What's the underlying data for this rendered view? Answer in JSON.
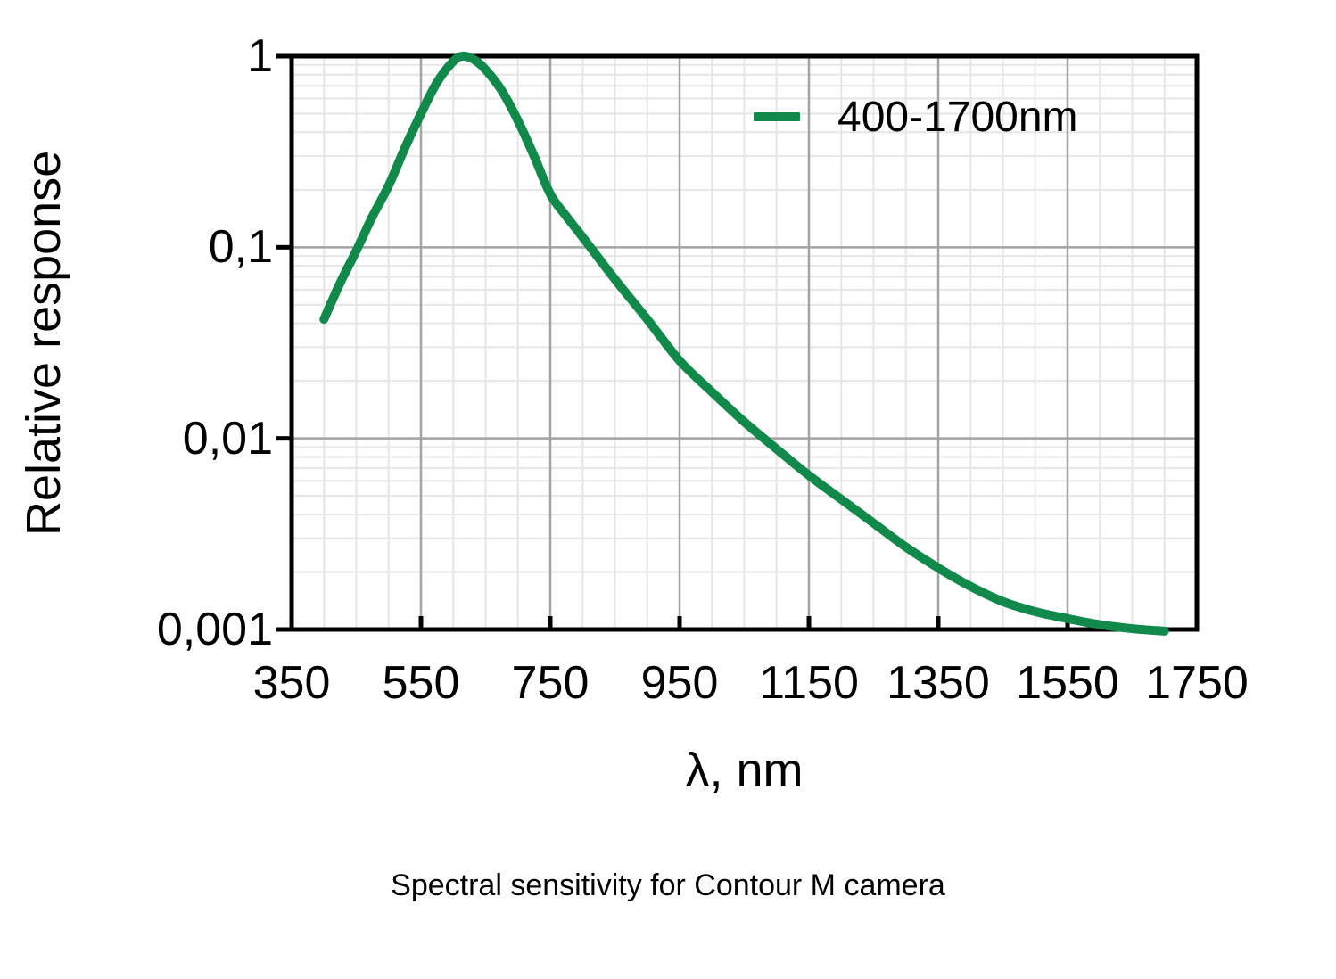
{
  "figure": {
    "caption": "Spectral sensitivity for Contour M camera"
  },
  "chart_data": {
    "type": "line",
    "title": "Spectral sensitivity for Contour M camera",
    "xlabel": "λ, nm",
    "ylabel": "Relative response",
    "x_axis": {
      "min": 350,
      "max": 1750,
      "scale": "linear",
      "ticks": [
        {
          "value": 350,
          "label": "350"
        },
        {
          "value": 550,
          "label": "550"
        },
        {
          "value": 750,
          "label": "750"
        },
        {
          "value": 950,
          "label": "950"
        },
        {
          "value": 1150,
          "label": "1150"
        },
        {
          "value": 1350,
          "label": "1350"
        },
        {
          "value": 1550,
          "label": "1550"
        },
        {
          "value": 1750,
          "label": "1750"
        }
      ]
    },
    "y_axis": {
      "min": 0.001,
      "max": 1,
      "scale": "log",
      "ticks": [
        {
          "value": 1,
          "label": "1"
        },
        {
          "value": 0.1,
          "label": "0,1"
        },
        {
          "value": 0.01,
          "label": "0,01"
        },
        {
          "value": 0.001,
          "label": "0,001"
        }
      ]
    },
    "grid": {
      "major": true,
      "minor": true,
      "minor_x_step_nm": 50
    },
    "legend": {
      "position": "top-right",
      "entries": [
        {
          "label": "400-1700nm",
          "color": "#11894a"
        }
      ]
    },
    "series": [
      {
        "name": "400-1700nm",
        "color": "#11894a",
        "points": [
          [
            400,
            0.042
          ],
          [
            425,
            0.065
          ],
          [
            450,
            0.096
          ],
          [
            475,
            0.145
          ],
          [
            500,
            0.21
          ],
          [
            525,
            0.33
          ],
          [
            550,
            0.5
          ],
          [
            575,
            0.73
          ],
          [
            600,
            0.94
          ],
          [
            615,
            1.0
          ],
          [
            632,
            0.96
          ],
          [
            650,
            0.85
          ],
          [
            675,
            0.66
          ],
          [
            700,
            0.46
          ],
          [
            725,
            0.3
          ],
          [
            750,
            0.19
          ],
          [
            775,
            0.145
          ],
          [
            800,
            0.113
          ],
          [
            850,
            0.068
          ],
          [
            900,
            0.042
          ],
          [
            950,
            0.0255
          ],
          [
            1000,
            0.0175
          ],
          [
            1050,
            0.0122
          ],
          [
            1100,
            0.0088
          ],
          [
            1150,
            0.0064
          ],
          [
            1200,
            0.0048
          ],
          [
            1250,
            0.0036
          ],
          [
            1300,
            0.0027
          ],
          [
            1350,
            0.0021
          ],
          [
            1400,
            0.00168
          ],
          [
            1450,
            0.0014
          ],
          [
            1500,
            0.00124
          ],
          [
            1550,
            0.00114
          ],
          [
            1600,
            0.00106
          ],
          [
            1650,
            0.00101
          ],
          [
            1700,
            0.00098
          ]
        ]
      }
    ]
  }
}
